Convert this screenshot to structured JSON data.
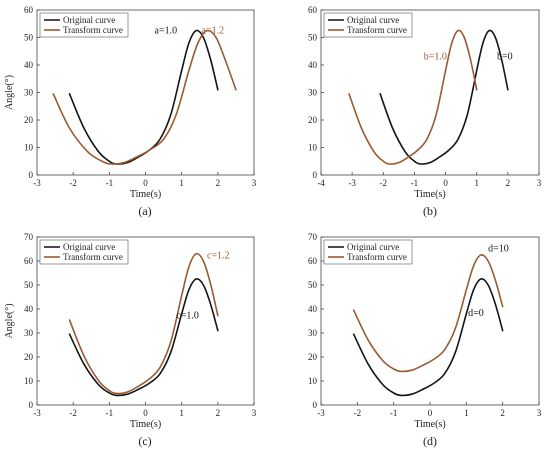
{
  "colors": {
    "original": "#141414",
    "transform": "#9a5a32",
    "axis": "#444444"
  },
  "chart_data": [
    {
      "type": "line",
      "panel_label": "(a)",
      "xlabel": "Time(s)",
      "ylabel": "Angle(°)",
      "xlim": [
        -3,
        3
      ],
      "ylim": [
        0,
        60
      ],
      "xticks": [
        -3,
        -2,
        -1,
        0,
        1,
        2,
        3
      ],
      "yticks": [
        0,
        10,
        20,
        30,
        40,
        50,
        60
      ],
      "legend": [
        "Original curve",
        "Transform curve"
      ],
      "legend_position": "top-left",
      "series": [
        {
          "name": "Original curve",
          "color_key": "original",
          "x": [
            -2.1,
            -1.7,
            -1.3,
            -1.0,
            -0.8,
            -0.5,
            -0.2,
            0.1,
            0.4,
            0.7,
            1.0,
            1.2,
            1.4,
            1.6,
            1.8,
            2.0
          ],
          "y": [
            29.5,
            17,
            8.5,
            5,
            4,
            4.5,
            6.5,
            9,
            13,
            22,
            38,
            48,
            52.5,
            50,
            42,
            31
          ]
        },
        {
          "name": "Transform curve",
          "color_key": "transform",
          "x": [
            -2.55,
            -2.1,
            -1.6,
            -1.2,
            -0.95,
            -0.6,
            -0.25,
            0.1,
            0.5,
            0.85,
            1.2,
            1.45,
            1.7,
            1.95,
            2.2,
            2.5
          ],
          "y": [
            29.5,
            17,
            8.5,
            5,
            4,
            4.5,
            6.5,
            9,
            13,
            22,
            38,
            48,
            52.5,
            50,
            42,
            31
          ]
        }
      ],
      "annotations": [
        {
          "text": "a=1.0",
          "x": 0.25,
          "y": 51.5,
          "color_key": "original"
        },
        {
          "text": "a=1.2",
          "x": 1.55,
          "y": 51.5,
          "color_key": "transform"
        }
      ]
    },
    {
      "type": "line",
      "panel_label": "(b)",
      "xlabel": "Time(s)",
      "ylabel": "",
      "xlim": [
        -4,
        3
      ],
      "ylim": [
        0,
        60
      ],
      "xticks": [
        -4,
        -3,
        -2,
        -1,
        0,
        1,
        2,
        3
      ],
      "yticks": [
        0,
        10,
        20,
        30,
        40,
        50,
        60
      ],
      "legend": [
        "Original curve",
        "Transform curve"
      ],
      "legend_position": "top-left",
      "series": [
        {
          "name": "Original curve",
          "color_key": "original",
          "x": [
            -2.1,
            -1.7,
            -1.3,
            -1.0,
            -0.8,
            -0.5,
            -0.2,
            0.1,
            0.4,
            0.7,
            1.0,
            1.2,
            1.4,
            1.6,
            1.8,
            2.0
          ],
          "y": [
            29.5,
            17,
            8.5,
            5,
            4,
            4.5,
            6.5,
            9,
            13,
            22,
            38,
            48,
            52.5,
            50,
            42,
            31
          ]
        },
        {
          "name": "Transform curve",
          "color_key": "transform",
          "x": [
            -3.1,
            -2.7,
            -2.3,
            -2.0,
            -1.8,
            -1.5,
            -1.2,
            -0.9,
            -0.6,
            -0.3,
            0.0,
            0.2,
            0.4,
            0.6,
            0.8,
            1.0
          ],
          "y": [
            29.5,
            17,
            8.5,
            5,
            4,
            4.5,
            6.5,
            9,
            13,
            22,
            38,
            48,
            52.5,
            50,
            42,
            31
          ]
        }
      ],
      "annotations": [
        {
          "text": "b=1.0",
          "x": -0.7,
          "y": 42,
          "color_key": "transform"
        },
        {
          "text": "b=0",
          "x": 1.65,
          "y": 42,
          "color_key": "original"
        }
      ]
    },
    {
      "type": "line",
      "panel_label": "(c)",
      "xlabel": "Time(s)",
      "ylabel": "Angle(°)",
      "xlim": [
        -3,
        3
      ],
      "ylim": [
        0,
        70
      ],
      "xticks": [
        -3,
        -2,
        -1,
        0,
        1,
        2,
        3
      ],
      "yticks": [
        0,
        10,
        20,
        30,
        40,
        50,
        60,
        70
      ],
      "legend": [
        "Original curve",
        "Transform curve"
      ],
      "legend_position": "top-left",
      "series": [
        {
          "name": "Original curve",
          "color_key": "original",
          "x": [
            -2.1,
            -1.7,
            -1.3,
            -1.0,
            -0.8,
            -0.5,
            -0.2,
            0.1,
            0.4,
            0.7,
            1.0,
            1.2,
            1.4,
            1.6,
            1.8,
            2.0
          ],
          "y": [
            29.5,
            17,
            8.5,
            5,
            4,
            4.5,
            6.5,
            9,
            13,
            22,
            38,
            48,
            52.5,
            50,
            42,
            31
          ]
        },
        {
          "name": "Transform curve",
          "color_key": "transform",
          "x": [
            -2.1,
            -1.7,
            -1.3,
            -1.0,
            -0.8,
            -0.5,
            -0.2,
            0.1,
            0.4,
            0.7,
            1.0,
            1.2,
            1.4,
            1.6,
            1.8,
            2.0
          ],
          "y": [
            35.4,
            20.4,
            10.2,
            6,
            4.8,
            5.4,
            7.8,
            10.8,
            15.6,
            26.4,
            45.6,
            57.6,
            63,
            60,
            50.4,
            37.2
          ]
        }
      ],
      "annotations": [
        {
          "text": "c=1.2",
          "x": 1.7,
          "y": 61,
          "color_key": "transform"
        },
        {
          "text": "c=1.0",
          "x": 0.85,
          "y": 36,
          "color_key": "original"
        }
      ]
    },
    {
      "type": "line",
      "panel_label": "(d)",
      "xlabel": "Time(s)",
      "ylabel": "",
      "xlim": [
        -3,
        3
      ],
      "ylim": [
        0,
        70
      ],
      "xticks": [
        -3,
        -2,
        -1,
        0,
        1,
        2,
        3
      ],
      "yticks": [
        0,
        10,
        20,
        30,
        40,
        50,
        60,
        70
      ],
      "legend": [
        "Original curve",
        "Transform curve"
      ],
      "legend_position": "top-left",
      "series": [
        {
          "name": "Original curve",
          "color_key": "original",
          "x": [
            -2.1,
            -1.7,
            -1.3,
            -1.0,
            -0.8,
            -0.5,
            -0.2,
            0.1,
            0.4,
            0.7,
            1.0,
            1.2,
            1.4,
            1.6,
            1.8,
            2.0
          ],
          "y": [
            29.5,
            17,
            8.5,
            5,
            4,
            4.5,
            6.5,
            9,
            13,
            22,
            38,
            48,
            52.5,
            50,
            42,
            31
          ]
        },
        {
          "name": "Transform curve",
          "color_key": "transform",
          "x": [
            -2.1,
            -1.7,
            -1.3,
            -1.0,
            -0.8,
            -0.5,
            -0.2,
            0.1,
            0.4,
            0.7,
            1.0,
            1.2,
            1.4,
            1.6,
            1.8,
            2.0
          ],
          "y": [
            39.5,
            27,
            18.5,
            15,
            14,
            14.5,
            16.5,
            19,
            23,
            32,
            48,
            58,
            62.5,
            60,
            52,
            41
          ]
        }
      ],
      "annotations": [
        {
          "text": "d=10",
          "x": 1.6,
          "y": 64,
          "color_key": "original"
        },
        {
          "text": "d=0",
          "x": 1.05,
          "y": 37,
          "color_key": "original"
        }
      ]
    }
  ]
}
